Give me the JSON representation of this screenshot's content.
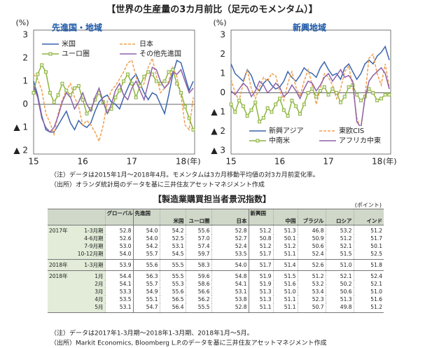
{
  "title": "【世界の生産量の3カ月前比（足元のモメンタム）】",
  "chart_data": [
    {
      "type": "line",
      "subtitle": "先進国・地域",
      "ylabel": "(%)",
      "xlabel": "(年)",
      "legend": "top",
      "categories": [
        "15",
        null,
        null,
        null,
        null,
        null,
        null,
        null,
        null,
        null,
        null,
        null,
        "16",
        null,
        null,
        null,
        null,
        null,
        null,
        null,
        null,
        null,
        null,
        null,
        "17",
        null,
        null,
        null,
        null,
        null,
        null,
        null,
        null,
        null,
        null,
        null,
        "18",
        null,
        null,
        null
      ],
      "ylim": [
        -2,
        3
      ],
      "yticks": [
        3,
        2,
        1,
        0,
        {
          "value": -1,
          "label": "▲ 1"
        },
        {
          "value": -2,
          "label": "▲ 2"
        }
      ],
      "series": [
        {
          "name": "米国",
          "color": "#3a64ad",
          "values": [
            1.0,
            0.4,
            -0.5,
            -1.1,
            -1.2,
            -1.2,
            -0.9,
            -0.6,
            -0.3,
            -0.8,
            -1.1,
            -0.7,
            -0.9,
            -1.0,
            -0.8,
            -0.3,
            0.1,
            0.3,
            0.4,
            0.1,
            0.0,
            -0.2,
            0.3,
            0.7,
            1.1,
            1.3,
            0.9,
            0.5,
            0.2,
            0.5,
            0.4,
            0.0,
            -0.4,
            0.4,
            1.3,
            1.9,
            1.8,
            1.2,
            0.6,
            1.0
          ]
        },
        {
          "name": "日本",
          "color": "#f0a050",
          "dashed": true,
          "values": [
            1.3,
            1.1,
            0.6,
            -0.4,
            -0.8,
            -1.3,
            -0.4,
            0.2,
            0.6,
            0.9,
            0.3,
            -0.1,
            -0.9,
            -0.7,
            -0.9,
            -1.2,
            -1.6,
            -0.9,
            0.1,
            0.6,
            0.8,
            1.1,
            1.4,
            1.8,
            1.9,
            1.2,
            0.7,
            0.9,
            1.6,
            2.0,
            1.2,
            0.5,
            0.7,
            1.0,
            1.6,
            1.2,
            0.4,
            -0.9,
            -1.1,
            0.3
          ]
        },
        {
          "name": "ユーロ圏",
          "color": "#8db43c",
          "marker": "square",
          "values": [
            0.5,
            1.3,
            1.7,
            1.4,
            0.5,
            0.1,
            0.4,
            0.9,
            0.6,
            0.4,
            0.7,
            0.8,
            0.2,
            -0.4,
            -0.2,
            0.2,
            0.5,
            0.1,
            -0.3,
            -0.2,
            0.3,
            0.6,
            1.0,
            1.3,
            0.9,
            0.3,
            0.8,
            1.2,
            1.4,
            1.3,
            1.0,
            0.9,
            1.0,
            1.4,
            1.5,
            0.9,
            0.5,
            -0.1,
            -0.6,
            -1.1
          ]
        },
        {
          "name": "その他先進国",
          "color": "#8e62a8",
          "values": [
            0.8,
            0.3,
            -0.6,
            -1.0,
            -1.2,
            -1.0,
            -0.5,
            0.1,
            0.5,
            0.3,
            -0.2,
            0.1,
            0.5,
            0.0,
            -0.3,
            0.3,
            0.7,
            0.1,
            -0.4,
            0.0,
            0.6,
            0.9,
            0.4,
            0.2,
            0.7,
            1.0,
            0.6,
            0.2,
            0.9,
            1.6,
            1.5,
            1.0,
            0.7,
            0.9,
            1.4,
            1.3,
            1.5,
            1.0,
            0.5,
            0.7
          ]
        }
      ]
    },
    {
      "type": "line",
      "subtitle": "新興地域",
      "ylabel": "(%)",
      "xlabel": "(年)",
      "legend": "bottom",
      "categories": [
        "15",
        null,
        null,
        null,
        null,
        null,
        null,
        null,
        null,
        null,
        null,
        null,
        "16",
        null,
        null,
        null,
        null,
        null,
        null,
        null,
        null,
        null,
        null,
        null,
        "17",
        null,
        null,
        null,
        null,
        null,
        null,
        null,
        null,
        null,
        null,
        null,
        "18",
        null,
        null,
        null
      ],
      "ylim": [
        -3,
        3
      ],
      "yticks": [
        3,
        2,
        1,
        0,
        {
          "value": -1,
          "label": "▲ 1"
        },
        {
          "value": -2,
          "label": "▲ 2"
        },
        {
          "value": -3,
          "label": "▲ 3"
        }
      ],
      "series": [
        {
          "name": "新興アジア",
          "color": "#3a64ad",
          "values": [
            1.5,
            1.0,
            0.8,
            0.6,
            1.2,
            0.9,
            0.3,
            0.1,
            0.5,
            0.7,
            0.4,
            0.2,
            0.3,
            0.6,
            1.1,
            0.8,
            0.6,
            0.9,
            1.3,
            1.1,
            1.0,
            0.8,
            1.3,
            1.6,
            1.2,
            0.9,
            1.0,
            0.7,
            1.3,
            1.5,
            1.1,
            0.7,
            1.0,
            1.5,
            1.7,
            1.5,
            1.9,
            2.1,
            2.4,
            1.7
          ]
        },
        {
          "name": "東欧CIS",
          "color": "#f0a050",
          "dashed": true,
          "values": [
            0.7,
            0.0,
            -0.4,
            0.5,
            1.2,
            0.2,
            -0.3,
            0.3,
            0.8,
            0.6,
            1.0,
            0.9,
            0.1,
            -0.4,
            0.5,
            1.1,
            0.3,
            -0.2,
            0.6,
            1.2,
            0.4,
            -0.6,
            0.2,
            1.0,
            0.8,
            0.4,
            -0.3,
            0.2,
            1.1,
            1.4,
            0.3,
            -1.3,
            -1.9,
            -0.2,
            1.8,
            2.0,
            1.0,
            0.4,
            1.5,
            0.3
          ]
        },
        {
          "name": "中南米",
          "color": "#8db43c",
          "marker": "square",
          "values": [
            -0.6,
            -1.0,
            -0.4,
            -0.7,
            -1.2,
            -0.9,
            -0.5,
            -1.5,
            -1.3,
            -0.8,
            -1.0,
            -0.6,
            -0.3,
            -0.9,
            -1.2,
            -0.4,
            -0.7,
            -1.1,
            -0.6,
            0.0,
            0.2,
            -0.2,
            0.1,
            0.3,
            -0.1,
            0.2,
            0.0,
            -0.5,
            -0.2,
            0.3,
            0.4,
            -0.1,
            -0.4,
            -0.2,
            0.2,
            0.0,
            -0.4,
            -0.3,
            -0.1,
            -0.1
          ]
        },
        {
          "name": "アフリカ中東",
          "color": "#8e62a8",
          "values": [
            0.1,
            -0.1,
            0.2,
            0.5,
            0.3,
            -0.2,
            0.1,
            0.6,
            0.4,
            0.0,
            0.2,
            0.5,
            0.3,
            -0.2,
            0.0,
            0.4,
            0.1,
            -0.3,
            0.2,
            0.6,
            0.5,
            0.1,
            0.4,
            0.8,
            1.0,
            0.6,
            0.9,
            1.2,
            0.8,
            0.9,
            0.6,
            -1.5,
            -1.8,
            -0.3,
            0.6,
            0.9,
            1.1,
            1.3,
            1.0,
            0.2
          ]
        }
      ]
    }
  ],
  "chart_notes": [
    "（注）データは2015年1月～2018年4月。モメンタムは3カ月移動平均値の対3カ月前変化率。",
    "（出所）オランダ統計局のデータを基に三井住友アセットマネジメント作成"
  ],
  "table": {
    "title": "【製造業購買担当者景況指数】",
    "unit": "(ポイント)",
    "columns": [
      "グローバル",
      "先進国",
      "米国",
      "ユーロ圏",
      "日本",
      "新興国",
      "中国",
      "ブラジル",
      "ロシア",
      "インド"
    ],
    "sections": [
      {
        "label": "2017年",
        "rows": [
          {
            "period": "1-3月期",
            "values": [
              "52.8",
              "54.0",
              "54.2",
              "55.6",
              "52.8",
              "51.2",
              "51.3",
              "46.8",
              "53.2",
              "51.2"
            ]
          },
          {
            "period": "4-6月期",
            "values": [
              "52.6",
              "54.0",
              "52.5",
              "57.0",
              "52.7",
              "50.8",
              "50.1",
              "50.9",
              "51.2",
              "51.7"
            ]
          },
          {
            "period": "7-9月期",
            "values": [
              "53.0",
              "54.2",
              "53.1",
              "57.4",
              "52.4",
              "51.2",
              "51.2",
              "50.6",
              "52.1",
              "50.1"
            ]
          },
          {
            "period": "10-12月期",
            "values": [
              "54.0",
              "55.7",
              "54.5",
              "59.7",
              "53.5",
              "51.7",
              "51.1",
              "52.4",
              "51.5",
              "52.5"
            ]
          }
        ]
      },
      {
        "label": "2018年",
        "rows": [
          {
            "period": "1-3月期",
            "values": [
              "53.9",
              "55.6",
              "55.5",
              "58.3",
              "54.0",
              "51.7",
              "51.4",
              "52.6",
              "51.0",
              "51.8"
            ]
          }
        ]
      },
      {
        "label": "2018年",
        "rows": [
          {
            "period": "1月",
            "values": [
              "54.4",
              "56.3",
              "55.5",
              "59.6",
              "54.8",
              "51.9",
              "51.5",
              "51.2",
              "52.1",
              "52.4"
            ]
          },
          {
            "period": "2月",
            "values": [
              "54.1",
              "55.7",
              "55.3",
              "58.6",
              "54.1",
              "51.9",
              "51.6",
              "53.2",
              "50.2",
              "52.1"
            ]
          },
          {
            "period": "3月",
            "values": [
              "53.3",
              "54.9",
              "55.6",
              "56.6",
              "53.1",
              "51.3",
              "51.0",
              "53.4",
              "50.6",
              "51.0"
            ]
          },
          {
            "period": "4月",
            "values": [
              "53.5",
              "55.1",
              "56.5",
              "56.2",
              "53.8",
              "51.3",
              "51.1",
              "52.3",
              "51.3",
              "51.6"
            ]
          },
          {
            "period": "5月",
            "values": [
              "53.1",
              "54.7",
              "56.4",
              "55.5",
              "52.8",
              "51.1",
              "51.1",
              "50.7",
              "49.8",
              "51.2"
            ]
          }
        ]
      }
    ],
    "notes": [
      "（注）データは2017年1-3月期～2018年1-3月期、2018年1月～5月。",
      "（出所）Markit Economics, Bloomberg L.P.のデータを基に三井住友アセットマネジメント作成"
    ]
  }
}
